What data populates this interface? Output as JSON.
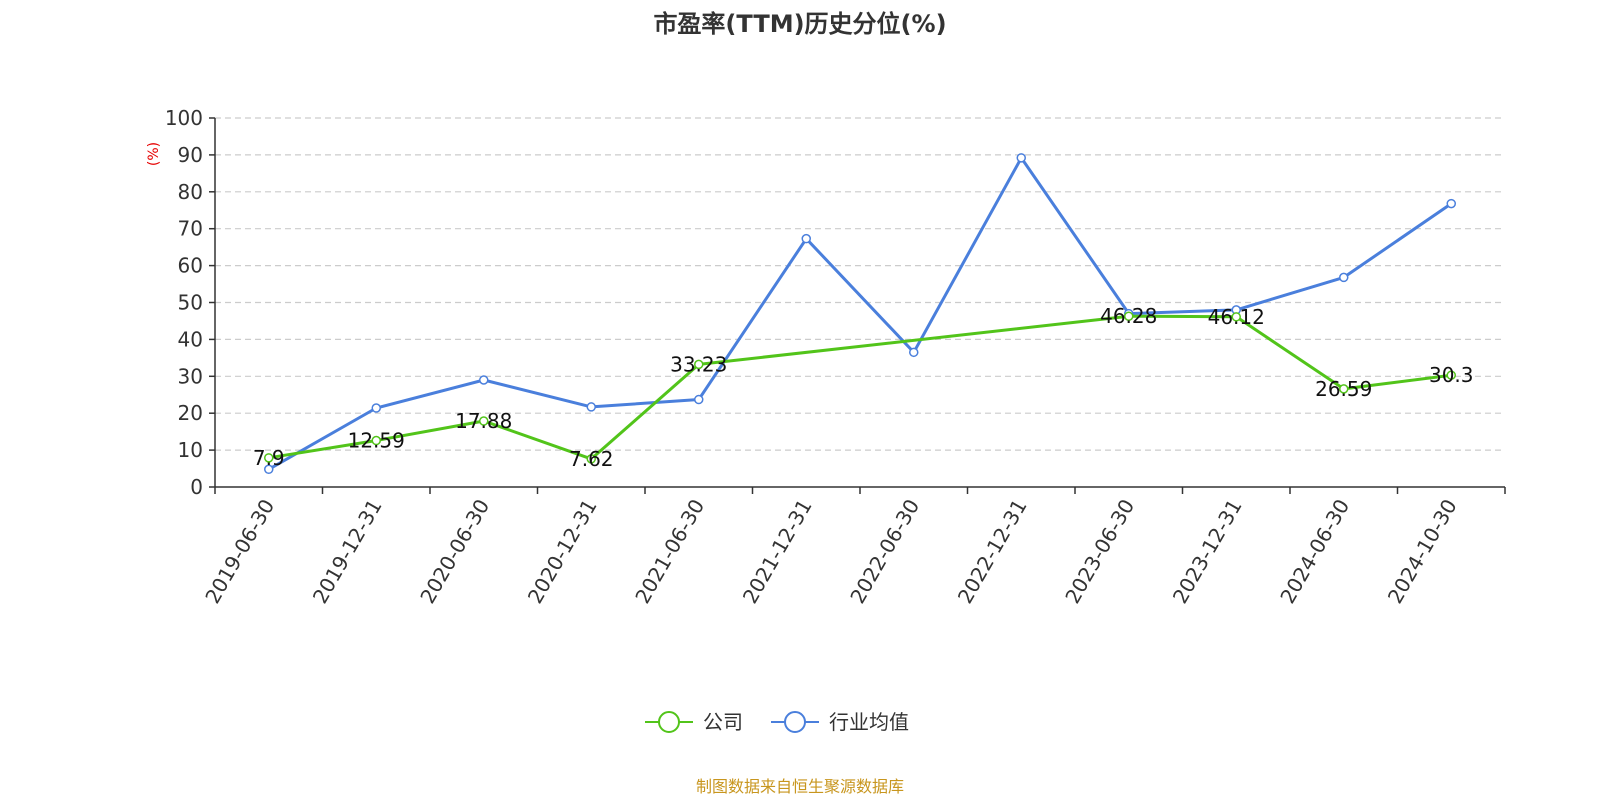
{
  "chart_data": {
    "type": "line",
    "title": "市盈率(TTM)历史分位(%)",
    "ylabel": "(%)",
    "ylim": [
      0,
      100
    ],
    "yticks": [
      0,
      10,
      20,
      30,
      40,
      50,
      60,
      70,
      80,
      90,
      100
    ],
    "grid": true,
    "legend_position": "bottom",
    "categories": [
      "2019-06-30",
      "2019-12-31",
      "2020-06-30",
      "2020-12-31",
      "2021-06-30",
      "2021-12-31",
      "2022-06-30",
      "2022-12-31",
      "2023-06-30",
      "2023-12-31",
      "2024-06-30",
      "2024-10-30"
    ],
    "series": [
      {
        "name": "公司",
        "color": "#52c41a",
        "values": [
          7.9,
          12.59,
          17.88,
          7.62,
          33.23,
          null,
          null,
          null,
          46.28,
          46.12,
          26.59,
          30.3
        ],
        "labels": [
          "7.9",
          "12.59",
          "17.88",
          "7.62",
          "33.23",
          null,
          null,
          null,
          "46.28",
          "46.12",
          "26.59",
          "30.3"
        ]
      },
      {
        "name": "行业均值",
        "color": "#4a7fdc",
        "values": [
          4.8,
          21.4,
          29.0,
          21.7,
          23.7,
          67.3,
          36.5,
          89.2,
          47.0,
          48.0,
          56.8,
          76.8
        ]
      }
    ]
  },
  "source": {
    "text": "制图数据来自恒生聚源数据库",
    "color": "#c8961e"
  },
  "colors": {
    "axis": "#333333",
    "grid": "#cccccc",
    "ylabel": "#e60000"
  }
}
